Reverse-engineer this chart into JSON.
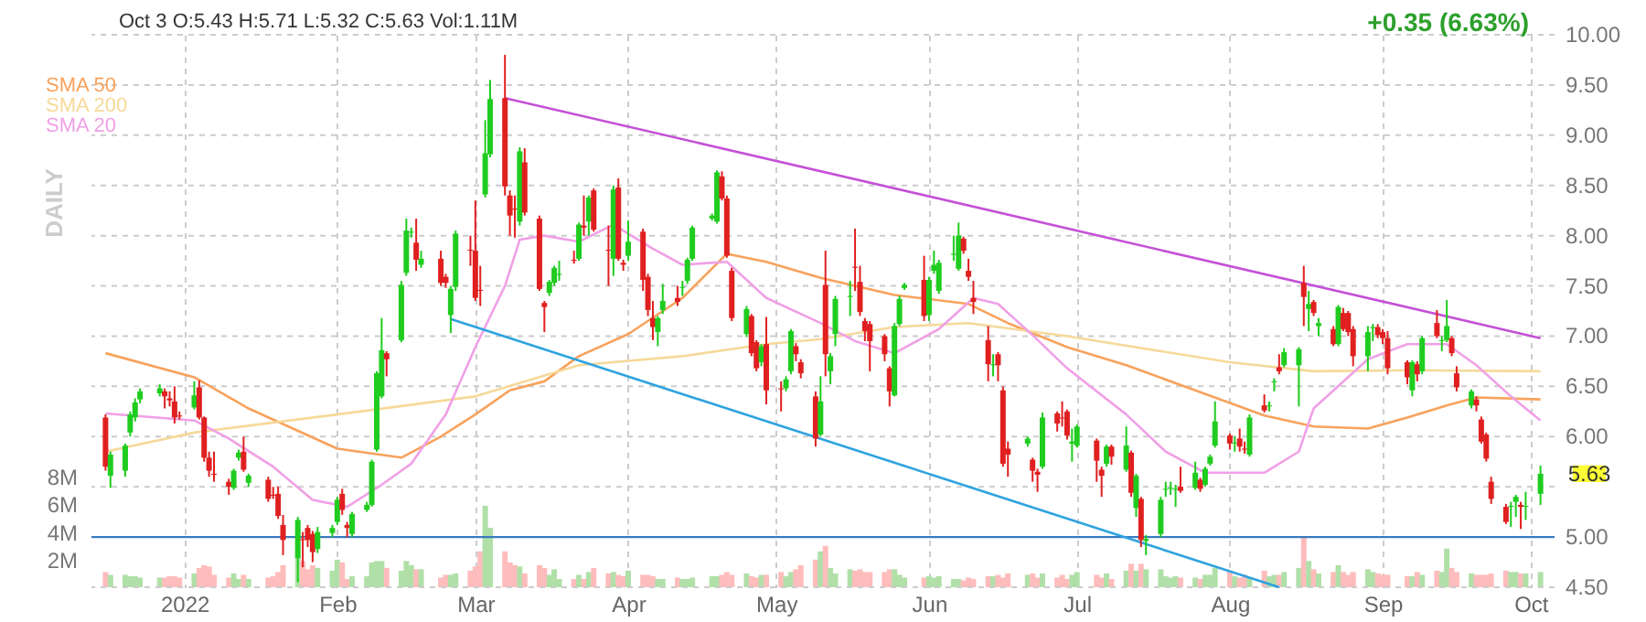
{
  "chart_data": {
    "type": "candlestick",
    "title": "Oct 3  O:5.43  H:5.71  L:5.32  C:5.63  Vol:1.11M",
    "annotations": [
      "+0.35 (6.63%)",
      "DAILY",
      "5.63"
    ],
    "x": [
      "2021-12-16",
      "2021-12-17",
      "2021-12-20",
      "2021-12-21",
      "2021-12-22",
      "2021-12-23",
      "2021-12-27",
      "2021-12-28",
      "2021-12-29",
      "2021-12-30",
      "2021-12-31",
      "2022-01-03",
      "2022-01-04",
      "2022-01-05",
      "2022-01-06",
      "2022-01-07",
      "2022-01-10",
      "2022-01-11",
      "2022-01-12",
      "2022-01-13",
      "2022-01-14",
      "2022-01-18",
      "2022-01-19",
      "2022-01-20",
      "2022-01-21",
      "2022-01-24",
      "2022-01-25",
      "2022-01-26",
      "2022-01-27",
      "2022-01-28",
      "2022-01-31",
      "2022-02-01",
      "2022-02-02",
      "2022-02-03",
      "2022-02-04",
      "2022-02-07",
      "2022-02-08",
      "2022-02-09",
      "2022-02-10",
      "2022-02-11",
      "2022-02-14",
      "2022-02-15",
      "2022-02-16",
      "2022-02-17",
      "2022-02-18",
      "2022-02-22",
      "2022-02-23",
      "2022-02-24",
      "2022-02-25",
      "2022-02-28",
      "2022-03-01",
      "2022-03-02",
      "2022-03-03",
      "2022-03-04",
      "2022-03-07",
      "2022-03-08",
      "2022-03-09",
      "2022-03-10",
      "2022-03-11",
      "2022-03-14",
      "2022-03-15",
      "2022-03-16",
      "2022-03-17",
      "2022-03-18",
      "2022-03-21",
      "2022-03-22",
      "2022-03-23",
      "2022-03-24",
      "2022-03-25",
      "2022-03-28",
      "2022-03-29",
      "2022-03-30",
      "2022-03-31",
      "2022-04-01",
      "2022-04-04",
      "2022-04-05",
      "2022-04-06",
      "2022-04-07",
      "2022-04-08",
      "2022-04-11",
      "2022-04-12",
      "2022-04-13",
      "2022-04-14",
      "2022-04-18",
      "2022-04-19",
      "2022-04-20",
      "2022-04-21",
      "2022-04-22",
      "2022-04-25",
      "2022-04-26",
      "2022-04-27",
      "2022-04-28",
      "2022-04-29",
      "2022-05-02",
      "2022-05-03",
      "2022-05-04",
      "2022-05-05",
      "2022-05-06",
      "2022-05-09",
      "2022-05-10",
      "2022-05-11",
      "2022-05-12",
      "2022-05-13",
      "2022-05-16",
      "2022-05-17",
      "2022-05-18",
      "2022-05-19",
      "2022-05-20",
      "2022-05-23",
      "2022-05-24",
      "2022-05-25",
      "2022-05-26",
      "2022-05-27",
      "2022-05-31",
      "2022-06-01",
      "2022-06-02",
      "2022-06-03",
      "2022-06-06",
      "2022-06-07",
      "2022-06-08",
      "2022-06-09",
      "2022-06-10",
      "2022-06-13",
      "2022-06-14",
      "2022-06-15",
      "2022-06-16",
      "2022-06-17",
      "2022-06-21",
      "2022-06-22",
      "2022-06-23",
      "2022-06-24",
      "2022-06-27",
      "2022-06-28",
      "2022-06-29",
      "2022-06-30",
      "2022-07-01",
      "2022-07-05",
      "2022-07-06",
      "2022-07-07",
      "2022-07-08",
      "2022-07-11",
      "2022-07-12",
      "2022-07-13",
      "2022-07-14",
      "2022-07-15",
      "2022-07-18",
      "2022-07-19",
      "2022-07-20",
      "2022-07-21",
      "2022-07-22",
      "2022-07-25",
      "2022-07-26",
      "2022-07-27",
      "2022-07-28",
      "2022-07-29",
      "2022-08-01",
      "2022-08-02",
      "2022-08-03",
      "2022-08-04",
      "2022-08-05",
      "2022-08-08",
      "2022-08-09",
      "2022-08-10",
      "2022-08-11",
      "2022-08-12",
      "2022-08-15",
      "2022-08-16",
      "2022-08-17",
      "2022-08-18",
      "2022-08-19",
      "2022-08-22",
      "2022-08-23",
      "2022-08-24",
      "2022-08-25",
      "2022-08-26",
      "2022-08-29",
      "2022-08-30",
      "2022-08-31",
      "2022-09-01",
      "2022-09-02",
      "2022-09-06",
      "2022-09-07",
      "2022-09-08",
      "2022-09-09",
      "2022-09-12",
      "2022-09-13",
      "2022-09-14",
      "2022-09-15",
      "2022-09-16",
      "2022-09-19",
      "2022-09-20",
      "2022-09-21",
      "2022-09-22",
      "2022-09-23",
      "2022-09-26",
      "2022-09-27",
      "2022-09-28",
      "2022-09-29",
      "2022-09-30",
      "2022-10-03"
    ],
    "ohlc": [
      [
        6.19,
        6.22,
        5.66,
        5.7
      ],
      [
        5.61,
        5.85,
        5.49,
        5.82
      ],
      [
        5.66,
        5.93,
        5.6,
        5.91
      ],
      [
        6.04,
        6.25,
        6.0,
        6.22
      ],
      [
        6.19,
        6.38,
        6.15,
        6.34
      ],
      [
        6.37,
        6.48,
        6.33,
        6.45
      ],
      [
        6.43,
        6.52,
        6.4,
        6.48
      ],
      [
        6.45,
        6.48,
        6.28,
        6.4
      ],
      [
        6.38,
        6.45,
        6.3,
        6.36
      ],
      [
        6.35,
        6.5,
        6.13,
        6.19
      ],
      [
        6.21,
        6.25,
        6.17,
        6.2
      ],
      [
        6.29,
        6.55,
        6.27,
        6.41
      ],
      [
        6.49,
        6.56,
        6.17,
        6.19
      ],
      [
        6.19,
        6.2,
        5.75,
        5.79
      ],
      [
        5.79,
        5.85,
        5.6,
        5.66
      ],
      [
        5.63,
        5.85,
        5.55,
        5.62
      ],
      [
        5.55,
        5.58,
        5.42,
        5.5
      ],
      [
        5.49,
        5.68,
        5.47,
        5.66
      ],
      [
        5.79,
        5.87,
        5.76,
        5.84
      ],
      [
        5.85,
        6.0,
        5.65,
        5.67
      ],
      [
        5.54,
        5.63,
        5.5,
        5.61
      ],
      [
        5.57,
        5.6,
        5.35,
        5.38
      ],
      [
        5.42,
        5.5,
        5.38,
        5.41
      ],
      [
        5.43,
        5.5,
        5.18,
        5.21
      ],
      [
        5.12,
        5.22,
        4.82,
        4.97
      ],
      [
        4.79,
        5.2,
        4.55,
        5.17
      ],
      [
        4.98,
        5.05,
        4.7,
        4.97
      ],
      [
        5.09,
        5.12,
        4.9,
        4.97
      ],
      [
        5.03,
        5.06,
        4.75,
        4.85
      ],
      [
        4.88,
        5.1,
        4.84,
        5.05
      ],
      [
        5.04,
        5.12,
        5.0,
        5.09
      ],
      [
        5.15,
        5.4,
        5.12,
        5.37
      ],
      [
        5.43,
        5.48,
        5.22,
        5.27
      ],
      [
        5.12,
        5.15,
        5.0,
        5.09
      ],
      [
        5.03,
        5.25,
        5.0,
        5.23
      ],
      [
        5.27,
        5.35,
        5.25,
        5.32
      ],
      [
        5.32,
        5.77,
        5.3,
        5.75
      ],
      [
        5.87,
        6.65,
        5.85,
        6.63
      ],
      [
        6.4,
        7.18,
        6.38,
        6.86
      ],
      [
        6.83,
        6.85,
        6.6,
        6.77
      ],
      [
        6.96,
        7.55,
        6.94,
        7.51
      ],
      [
        7.63,
        8.17,
        7.6,
        8.05
      ],
      [
        8.03,
        8.08,
        7.98,
        8.04
      ],
      [
        7.93,
        8.17,
        7.65,
        7.76
      ],
      [
        7.71,
        7.85,
        7.68,
        7.77
      ],
      [
        7.77,
        7.85,
        7.5,
        7.53
      ],
      [
        7.59,
        7.62,
        7.48,
        7.53
      ],
      [
        7.21,
        7.5,
        7.03,
        7.47
      ],
      [
        7.49,
        8.05,
        7.45,
        8.02
      ],
      [
        7.86,
        8.0,
        7.7,
        7.85
      ],
      [
        7.85,
        8.35,
        7.35,
        7.38
      ],
      [
        7.46,
        7.7,
        7.3,
        7.45
      ],
      [
        8.41,
        9.15,
        8.38,
        8.82
      ],
      [
        8.81,
        9.55,
        8.78,
        9.36
      ],
      [
        9.37,
        9.8,
        8.4,
        8.49
      ],
      [
        8.4,
        8.45,
        8.0,
        8.2
      ],
      [
        8.27,
        8.4,
        7.98,
        8.26
      ],
      [
        8.14,
        8.88,
        8.1,
        8.84
      ],
      [
        8.73,
        8.87,
        8.2,
        8.23
      ],
      [
        8.17,
        8.2,
        7.45,
        7.47
      ],
      [
        7.33,
        7.35,
        7.04,
        7.29
      ],
      [
        7.43,
        7.56,
        7.4,
        7.54
      ],
      [
        7.53,
        7.7,
        7.5,
        7.68
      ],
      [
        7.61,
        7.75,
        7.55,
        7.62
      ],
      [
        7.76,
        7.85,
        7.72,
        7.75
      ],
      [
        7.77,
        8.13,
        7.75,
        8.11
      ],
      [
        8.1,
        8.4,
        8.0,
        8.08
      ],
      [
        8.14,
        8.4,
        8.0,
        8.38
      ],
      [
        8.45,
        8.47,
        8.04,
        8.06
      ],
      [
        7.86,
        8.1,
        7.5,
        7.85
      ],
      [
        7.77,
        8.5,
        7.6,
        8.46
      ],
      [
        8.48,
        8.57,
        7.75,
        7.77
      ],
      [
        7.73,
        7.76,
        7.65,
        7.71
      ],
      [
        7.8,
        8.15,
        7.75,
        7.94
      ],
      [
        8.04,
        8.07,
        7.45,
        7.56
      ],
      [
        7.59,
        7.62,
        7.2,
        7.26
      ],
      [
        7.18,
        7.35,
        6.96,
        7.09
      ],
      [
        7.04,
        7.2,
        6.9,
        7.18
      ],
      [
        7.26,
        7.52,
        7.22,
        7.35
      ],
      [
        7.38,
        7.5,
        7.3,
        7.34
      ],
      [
        7.48,
        7.55,
        7.4,
        7.49
      ],
      [
        7.55,
        7.78,
        7.52,
        7.76
      ],
      [
        7.77,
        8.1,
        7.75,
        8.08
      ],
      [
        8.17,
        8.22,
        8.15,
        8.2
      ],
      [
        8.14,
        8.65,
        8.12,
        8.63
      ],
      [
        8.59,
        8.64,
        8.35,
        8.37
      ],
      [
        8.37,
        8.4,
        7.78,
        7.8
      ],
      [
        7.65,
        7.68,
        7.15,
        7.18
      ],
      [
        7.02,
        7.3,
        6.99,
        7.27
      ],
      [
        7.2,
        7.22,
        6.8,
        6.83
      ],
      [
        6.94,
        6.96,
        6.65,
        6.68
      ],
      [
        6.74,
        6.92,
        6.7,
        6.9
      ],
      [
        6.92,
        7.19,
        6.32,
        6.46
      ],
      [
        6.48,
        6.55,
        6.25,
        6.47
      ],
      [
        6.48,
        6.6,
        6.45,
        6.57
      ],
      [
        6.65,
        7.07,
        6.62,
        7.05
      ],
      [
        6.9,
        6.93,
        6.75,
        6.82
      ],
      [
        6.74,
        6.77,
        6.58,
        6.63
      ],
      [
        6.4,
        6.45,
        5.9,
        5.98
      ],
      [
        6.02,
        6.6,
        6.0,
        6.35
      ],
      [
        7.51,
        7.85,
        6.6,
        6.82
      ],
      [
        6.65,
        6.83,
        6.52,
        6.8
      ],
      [
        7.02,
        7.4,
        6.9,
        7.37
      ],
      [
        7.39,
        7.55,
        7.2,
        7.4
      ],
      [
        7.69,
        8.07,
        7.45,
        7.68
      ],
      [
        7.54,
        7.7,
        7.2,
        7.24
      ],
      [
        7.15,
        7.18,
        6.95,
        7.05
      ],
      [
        7.12,
        7.15,
        6.65,
        6.95
      ],
      [
        7.0,
        7.02,
        6.75,
        6.82
      ],
      [
        6.68,
        6.7,
        6.3,
        6.45
      ],
      [
        6.41,
        7.13,
        6.4,
        7.1
      ],
      [
        7.12,
        7.4,
        7.1,
        7.37
      ],
      [
        7.48,
        7.53,
        7.46,
        7.51
      ],
      [
        7.56,
        7.8,
        7.15,
        7.2
      ],
      [
        7.21,
        7.59,
        7.15,
        7.56
      ],
      [
        7.65,
        7.85,
        7.62,
        7.71
      ],
      [
        7.45,
        7.76,
        7.42,
        7.73
      ],
      [
        7.81,
        8.0,
        7.75,
        7.82
      ],
      [
        7.67,
        8.13,
        7.65,
        8.0
      ],
      [
        7.97,
        7.99,
        7.82,
        7.85
      ],
      [
        7.65,
        7.77,
        7.55,
        7.59
      ],
      [
        7.38,
        7.55,
        7.22,
        7.34
      ],
      [
        6.96,
        7.1,
        6.55,
        6.72
      ],
      [
        6.71,
        6.82,
        6.6,
        6.72
      ],
      [
        6.82,
        6.84,
        6.55,
        6.71
      ],
      [
        6.46,
        6.5,
        5.7,
        5.73
      ],
      [
        5.88,
        5.95,
        5.6,
        5.82
      ],
      [
        5.93,
        6.0,
        5.9,
        5.98
      ],
      [
        5.77,
        5.79,
        5.55,
        5.66
      ],
      [
        5.65,
        5.68,
        5.45,
        5.62
      ],
      [
        5.7,
        6.24,
        5.68,
        6.19
      ],
      [
        6.23,
        6.25,
        6.05,
        6.13
      ],
      [
        6.19,
        6.35,
        6.1,
        6.18
      ],
      [
        6.25,
        6.27,
        5.97,
        6.01
      ],
      [
        5.93,
        6.08,
        5.75,
        5.95
      ],
      [
        5.91,
        6.12,
        5.89,
        6.1
      ],
      [
        5.96,
        5.98,
        5.55,
        5.76
      ],
      [
        5.67,
        5.7,
        5.4,
        5.61
      ],
      [
        5.73,
        5.92,
        5.7,
        5.9
      ],
      [
        5.9,
        5.92,
        5.72,
        5.8
      ],
      [
        5.67,
        6.1,
        5.65,
        5.91
      ],
      [
        5.84,
        5.86,
        5.4,
        5.44
      ],
      [
        5.29,
        5.63,
        5.2,
        5.61
      ],
      [
        5.38,
        5.4,
        4.9,
        4.97
      ],
      [
        4.96,
        5.02,
        4.82,
        4.98
      ],
      [
        5.03,
        5.4,
        5.0,
        5.37
      ],
      [
        5.47,
        5.55,
        5.4,
        5.48
      ],
      [
        5.48,
        5.55,
        5.42,
        5.49
      ],
      [
        5.47,
        5.52,
        5.3,
        5.48
      ],
      [
        5.5,
        5.7,
        5.44,
        5.46
      ],
      [
        5.49,
        5.75,
        5.47,
        5.64
      ],
      [
        5.57,
        5.59,
        5.45,
        5.48
      ],
      [
        5.52,
        5.7,
        5.5,
        5.68
      ],
      [
        5.73,
        5.82,
        5.71,
        5.8
      ],
      [
        5.91,
        6.35,
        5.89,
        6.15
      ],
      [
        6.01,
        6.03,
        5.87,
        5.93
      ],
      [
        5.93,
        6.0,
        5.85,
        5.94
      ],
      [
        5.98,
        6.08,
        5.85,
        5.9
      ],
      [
        5.88,
        5.95,
        5.83,
        5.87
      ],
      [
        5.82,
        6.22,
        5.8,
        6.19
      ],
      [
        6.31,
        6.42,
        6.24,
        6.26
      ],
      [
        6.3,
        6.35,
        6.25,
        6.31
      ],
      [
        6.54,
        6.58,
        6.45,
        6.55
      ],
      [
        6.69,
        6.82,
        6.62,
        6.65
      ],
      [
        6.71,
        6.88,
        6.69,
        6.84
      ],
      [
        6.71,
        6.89,
        6.3,
        6.87
      ],
      [
        7.53,
        7.7,
        7.1,
        7.39
      ],
      [
        7.27,
        7.45,
        7.05,
        7.32
      ],
      [
        7.34,
        7.36,
        7.2,
        7.23
      ],
      [
        7.1,
        7.18,
        7.0,
        7.13
      ],
      [
        7.07,
        7.1,
        6.9,
        6.92
      ],
      [
        6.92,
        7.31,
        6.9,
        7.29
      ],
      [
        7.23,
        7.28,
        7.05,
        7.07
      ],
      [
        7.23,
        7.25,
        7.0,
        7.04
      ],
      [
        7.07,
        7.1,
        6.7,
        6.8
      ],
      [
        6.8,
        7.1,
        6.65,
        7.04
      ],
      [
        7.08,
        7.12,
        6.95,
        7.09
      ],
      [
        7.09,
        7.12,
        6.98,
        7.01
      ],
      [
        7.04,
        7.07,
        6.92,
        6.98
      ],
      [
        6.98,
        7.05,
        6.62,
        6.68
      ],
      [
        6.74,
        6.76,
        6.52,
        6.59
      ],
      [
        6.46,
        6.76,
        6.4,
        6.74
      ],
      [
        6.72,
        6.75,
        6.55,
        6.62
      ],
      [
        6.65,
        7.0,
        6.62,
        6.98
      ],
      [
        7.13,
        7.26,
        6.98,
        7.0
      ],
      [
        6.95,
        7.0,
        6.85,
        6.96
      ],
      [
        6.96,
        7.36,
        6.94,
        7.1
      ],
      [
        6.98,
        7.0,
        6.8,
        6.83
      ],
      [
        6.63,
        6.7,
        6.45,
        6.49
      ],
      [
        6.31,
        6.47,
        6.28,
        6.45
      ],
      [
        6.37,
        6.4,
        6.25,
        6.31
      ],
      [
        6.17,
        6.2,
        5.93,
        5.95
      ],
      [
        6.02,
        6.04,
        5.75,
        5.78
      ],
      [
        5.55,
        5.6,
        5.33,
        5.38
      ],
      [
        5.3,
        5.33,
        5.13,
        5.15
      ],
      [
        5.3,
        5.35,
        5.1,
        5.31
      ],
      [
        5.35,
        5.42,
        5.2,
        5.4
      ],
      [
        5.32,
        5.35,
        5.08,
        5.3
      ],
      [
        5.3,
        5.45,
        5.17,
        5.31
      ],
      [
        5.43,
        5.71,
        5.32,
        5.63
      ]
    ],
    "series": [
      {
        "type": "bar",
        "axis": "y2",
        "values": [
          1.1,
          0.9,
          0.9,
          0.8,
          0.8,
          0.7,
          0.7,
          0.7,
          0.8,
          0.8,
          0.7,
          1.0,
          1.4,
          1.6,
          1.5,
          0.9,
          0.7,
          1.0,
          0.6,
          0.9,
          0.6,
          0.7,
          0.8,
          1.1,
          1.6,
          2.2,
          1.9,
          1.3,
          1.6,
          1.4,
          1.2,
          2.0,
          1.8,
          0.6,
          0.8,
          0.8,
          1.8,
          1.9,
          1.9,
          1.4,
          1.2,
          1.9,
          1.6,
          1.3,
          1.3,
          0.7,
          0.9,
          0.9,
          1.0,
          1.2,
          1.5,
          2.6,
          5.9,
          4.3,
          2.6,
          1.8,
          1.6,
          1.5,
          1.0,
          1.6,
          1.4,
          0.9,
          1.3,
          0.6,
          0.6,
          0.9,
          0.6,
          1.1,
          1.4,
          1.0,
          1.1,
          0.9,
          0.8,
          1.2,
          0.9,
          0.9,
          0.8,
          0.6,
          0.6,
          0.7,
          0.6,
          0.6,
          0.7,
          0.8,
          0.8,
          0.9,
          1.1,
          0.9,
          1.0,
          0.8,
          0.7,
          0.9,
          0.9,
          1.1,
          0.8,
          1.1,
          1.3,
          1.6,
          2.0,
          2.6,
          3.0,
          1.4,
          1.0,
          1.3,
          1.2,
          1.3,
          1.1,
          1.1,
          1.1,
          1.3,
          1.3,
          0.9,
          0.7,
          0.7,
          0.8,
          0.7,
          0.8,
          0.6,
          0.6,
          0.5,
          0.7,
          0.6,
          0.8,
          0.8,
          0.9,
          0.7,
          1.0,
          0.9,
          1.0,
          0.7,
          1.0,
          0.7,
          0.9,
          0.6,
          0.9,
          1.1,
          0.9,
          0.7,
          1.0,
          0.6,
          1.2,
          1.7,
          1.2,
          1.7,
          1.3,
          1.3,
          0.8,
          0.7,
          0.8,
          0.7,
          0.7,
          0.6,
          0.9,
          0.9,
          1.4,
          1.2,
          0.8,
          0.7,
          0.9,
          0.7,
          1.2,
          0.8,
          0.9,
          0.9,
          1.1,
          1.4,
          3.6,
          1.9,
          1.3,
          1.0,
          1.1,
          1.6,
          1.1,
          0.9,
          1.1,
          1.3,
          1.1,
          1.0,
          0.9,
          0.9,
          0.8,
          0.8,
          1.1,
          0.9,
          1.2,
          1.1,
          2.8,
          1.4,
          1.1,
          1.0,
          0.9,
          0.9,
          0.9,
          1.0,
          1.2,
          1.1,
          1.1,
          1.0,
          1.0,
          1.1
        ],
        "colors": [
          "#ffbcbc",
          "#b0e0a8",
          "#b0e0a8",
          "#b0e0a8",
          "#b0e0a8",
          "#b0e0a8",
          "#b0e0a8",
          "#ffbcbc",
          "#ffbcbc",
          "#ffbcbc",
          "#ffbcbc",
          "#b0e0a8",
          "#ffbcbc",
          "#ffbcbc",
          "#ffbcbc",
          "#ffbcbc",
          "#ffbcbc",
          "#b0e0a8",
          "#b0e0a8",
          "#ffbcbc",
          "#b0e0a8",
          "#ffbcbc",
          "#ffbcbc",
          "#ffbcbc",
          "#ffbcbc",
          "#b0e0a8",
          "#ffbcbc",
          "#ffbcbc",
          "#ffbcbc",
          "#b0e0a8",
          "#b0e0a8",
          "#b0e0a8",
          "#ffbcbc",
          "#ffbcbc",
          "#b0e0a8",
          "#b0e0a8",
          "#b0e0a8",
          "#b0e0a8",
          "#b0e0a8",
          "#ffbcbc",
          "#b0e0a8",
          "#b0e0a8",
          "#b0e0a8",
          "#ffbcbc",
          "#b0e0a8",
          "#ffbcbc",
          "#ffbcbc",
          "#b0e0a8",
          "#b0e0a8",
          "#ffbcbc",
          "#ffbcbc",
          "#ffbcbc",
          "#b0e0a8",
          "#b0e0a8",
          "#ffbcbc",
          "#ffbcbc",
          "#ffbcbc",
          "#b0e0a8",
          "#ffbcbc",
          "#ffbcbc",
          "#ffbcbc",
          "#b0e0a8",
          "#b0e0a8",
          "#b0e0a8",
          "#ffbcbc",
          "#b0e0a8",
          "#ffbcbc",
          "#b0e0a8",
          "#ffbcbc",
          "#ffbcbc",
          "#b0e0a8",
          "#ffbcbc",
          "#ffbcbc",
          "#b0e0a8",
          "#ffbcbc",
          "#ffbcbc",
          "#ffbcbc",
          "#b0e0a8",
          "#b0e0a8",
          "#ffbcbc",
          "#b0e0a8",
          "#b0e0a8",
          "#b0e0a8",
          "#b0e0a8",
          "#b0e0a8",
          "#ffbcbc",
          "#ffbcbc",
          "#ffbcbc",
          "#b0e0a8",
          "#ffbcbc",
          "#ffbcbc",
          "#b0e0a8",
          "#ffbcbc",
          "#ffbcbc",
          "#b0e0a8",
          "#b0e0a8",
          "#ffbcbc",
          "#ffbcbc",
          "#ffbcbc",
          "#b0e0a8",
          "#ffbcbc",
          "#b0e0a8",
          "#b0e0a8",
          "#b0e0a8",
          "#ffbcbc",
          "#ffbcbc",
          "#ffbcbc",
          "#ffbcbc",
          "#ffbcbc",
          "#ffbcbc",
          "#b0e0a8",
          "#b0e0a8",
          "#b0e0a8",
          "#ffbcbc",
          "#b0e0a8",
          "#b0e0a8",
          "#b0e0a8",
          "#b0e0a8",
          "#b0e0a8",
          "#ffbcbc",
          "#ffbcbc",
          "#ffbcbc",
          "#ffbcbc",
          "#b0e0a8",
          "#ffbcbc",
          "#ffbcbc",
          "#ffbcbc",
          "#b0e0a8",
          "#ffbcbc",
          "#ffbcbc",
          "#b0e0a8",
          "#ffbcbc",
          "#ffbcbc",
          "#ffbcbc",
          "#b0e0a8",
          "#b0e0a8",
          "#ffbcbc",
          "#ffbcbc",
          "#b0e0a8",
          "#ffbcbc",
          "#b0e0a8",
          "#ffbcbc",
          "#b0e0a8",
          "#ffbcbc",
          "#b0e0a8",
          "#b0e0a8",
          "#b0e0a8",
          "#b0e0a8",
          "#b0e0a8",
          "#ffbcbc",
          "#b0e0a8",
          "#ffbcbc",
          "#b0e0a8",
          "#b0e0a8",
          "#b0e0a8",
          "#ffbcbc",
          "#b0e0a8",
          "#ffbcbc",
          "#ffbcbc",
          "#b0e0a8",
          "#ffbcbc",
          "#b0e0a8",
          "#b0e0a8",
          "#ffbcbc",
          "#b0e0a8",
          "#b0e0a8",
          "#ffbcbc",
          "#b0e0a8",
          "#ffbcbc",
          "#b0e0a8",
          "#ffbcbc",
          "#b0e0a8",
          "#ffbcbc",
          "#ffbcbc",
          "#ffbcbc",
          "#b0e0a8",
          "#b0e0a8",
          "#ffbcbc",
          "#ffbcbc",
          "#ffbcbc",
          "#ffbcbc",
          "#b0e0a8",
          "#ffbcbc",
          "#b0e0a8",
          "#ffbcbc",
          "#b0e0a8",
          "#b0e0a8",
          "#ffbcbc",
          "#ffbcbc",
          "#b0e0a8",
          "#ffbcbc",
          "#ffbcbc",
          "#ffbcbc",
          "#ffbcbc",
          "#ffbcbc",
          "#b0e0a8",
          "#b0e0a8",
          "#ffbcbc",
          "#b0e0a8",
          "#b0e0a8"
        ]
      },
      {
        "name": "SMA 50",
        "type": "line",
        "color": "#f8a25c",
        "x": [
          "2021-12-16",
          "2022-01-03",
          "2022-01-14",
          "2022-02-01",
          "2022-02-14",
          "2022-02-22",
          "2022-03-01",
          "2022-03-08",
          "2022-03-15",
          "2022-03-22",
          "2022-04-01",
          "2022-04-12",
          "2022-04-21",
          "2022-04-29",
          "2022-05-10",
          "2022-05-25",
          "2022-06-09",
          "2022-06-17",
          "2022-06-29",
          "2022-07-11",
          "2022-07-25",
          "2022-08-08",
          "2022-08-18",
          "2022-08-29",
          "2022-09-06",
          "2022-09-14",
          "2022-09-20",
          "2022-10-03"
        ],
        "values": [
          6.83,
          6.59,
          6.28,
          5.88,
          5.79,
          6.0,
          6.22,
          6.46,
          6.55,
          6.8,
          7.02,
          7.38,
          7.82,
          7.74,
          7.58,
          7.41,
          7.32,
          7.13,
          6.89,
          6.71,
          6.46,
          6.21,
          6.1,
          6.08,
          6.19,
          6.31,
          6.39,
          6.37
        ]
      },
      {
        "name": "SMA 200",
        "type": "line",
        "color": "#f6d99a",
        "x": [
          "2021-12-16",
          "2022-01-03",
          "2022-02-01",
          "2022-03-01",
          "2022-03-22",
          "2022-04-12",
          "2022-04-29",
          "2022-05-10",
          "2022-05-25",
          "2022-06-09",
          "2022-06-29",
          "2022-08-01",
          "2022-08-18",
          "2022-09-06",
          "2022-10-03"
        ],
        "values": [
          5.85,
          6.04,
          6.22,
          6.4,
          6.71,
          6.8,
          6.92,
          6.97,
          7.09,
          7.13,
          7.0,
          6.74,
          6.65,
          6.66,
          6.65
        ]
      },
      {
        "name": "SMA 20",
        "type": "line",
        "color": "#f0a0e6",
        "x": [
          "2021-12-16",
          "2022-01-03",
          "2022-01-10",
          "2022-01-19",
          "2022-01-27",
          "2022-02-03",
          "2022-02-10",
          "2022-02-16",
          "2022-02-23",
          "2022-03-01",
          "2022-03-07",
          "2022-03-10",
          "2022-03-15",
          "2022-03-22",
          "2022-03-29",
          "2022-04-06",
          "2022-04-12",
          "2022-04-21",
          "2022-04-29",
          "2022-05-10",
          "2022-05-17",
          "2022-05-25",
          "2022-06-03",
          "2022-06-10",
          "2022-06-15",
          "2022-06-22",
          "2022-06-29",
          "2022-07-11",
          "2022-07-19",
          "2022-07-27",
          "2022-08-08",
          "2022-08-15",
          "2022-08-18",
          "2022-08-29",
          "2022-09-06",
          "2022-09-14",
          "2022-09-20",
          "2022-09-27",
          "2022-10-03"
        ],
        "values": [
          6.23,
          6.16,
          5.98,
          5.7,
          5.37,
          5.3,
          5.52,
          5.73,
          6.22,
          6.89,
          7.5,
          7.96,
          8.0,
          7.94,
          8.11,
          7.87,
          7.71,
          7.74,
          7.38,
          7.13,
          6.95,
          6.83,
          7.07,
          7.38,
          7.32,
          7.01,
          6.68,
          6.22,
          5.85,
          5.64,
          5.64,
          5.85,
          6.28,
          6.77,
          6.92,
          6.92,
          6.71,
          6.4,
          6.16
        ]
      },
      {
        "type": "line",
        "color": "#c451d6",
        "x": [
          "2022-03-07",
          "2022-10-03"
        ],
        "values": [
          9.37,
          6.98
        ]
      },
      {
        "type": "line",
        "color": "#2ea3e0",
        "x": [
          "2022-02-24",
          "2022-08-11"
        ],
        "values": [
          7.17,
          4.5
        ]
      }
    ],
    "ref_lines": [
      {
        "axis": "y",
        "value": 5,
        "color": "#3a7bbf"
      }
    ],
    "xlim": [
      "2021-12-15",
      "2022-10-04"
    ],
    "xticks": [
      {
        "value": "2022-01",
        "label": "2022"
      },
      {
        "value": "2022-02",
        "label": "Feb"
      },
      {
        "value": "2022-03",
        "label": "Mar"
      },
      {
        "value": "2022-04",
        "label": "Apr"
      },
      {
        "value": "2022-05",
        "label": "May"
      },
      {
        "value": "2022-06",
        "label": "Jun"
      },
      {
        "value": "2022-07",
        "label": "Jul"
      },
      {
        "value": "2022-08",
        "label": "Aug"
      },
      {
        "value": "2022-09",
        "label": "Sep"
      },
      {
        "value": "2022-10",
        "label": "Oct"
      }
    ],
    "ylim": [
      4.5,
      10
    ],
    "yticks": [
      {
        "value": 4.5,
        "label": "4.50"
      },
      {
        "value": 5,
        "label": "5.00"
      },
      {
        "value": 5.5,
        "label": null
      },
      {
        "value": 6,
        "label": "6.00"
      },
      {
        "value": 6.5,
        "label": "6.50"
      },
      {
        "value": 7,
        "label": "7.00"
      },
      {
        "value": 7.5,
        "label": "7.50"
      },
      {
        "value": 8,
        "label": "8.00"
      },
      {
        "value": 8.5,
        "label": "8.50"
      },
      {
        "value": 9,
        "label": "9.00"
      },
      {
        "value": 9.5,
        "label": "9.50"
      },
      {
        "value": 10,
        "label": "10.00"
      }
    ],
    "y2lim": [
      0,
      40
    ],
    "y2ticks": [
      {
        "value": 2,
        "label": "2M"
      },
      {
        "value": 4,
        "label": "4M"
      },
      {
        "value": 6,
        "label": "6M"
      },
      {
        "value": 8,
        "label": "8M"
      }
    ],
    "grid": true,
    "legend": "top left"
  }
}
